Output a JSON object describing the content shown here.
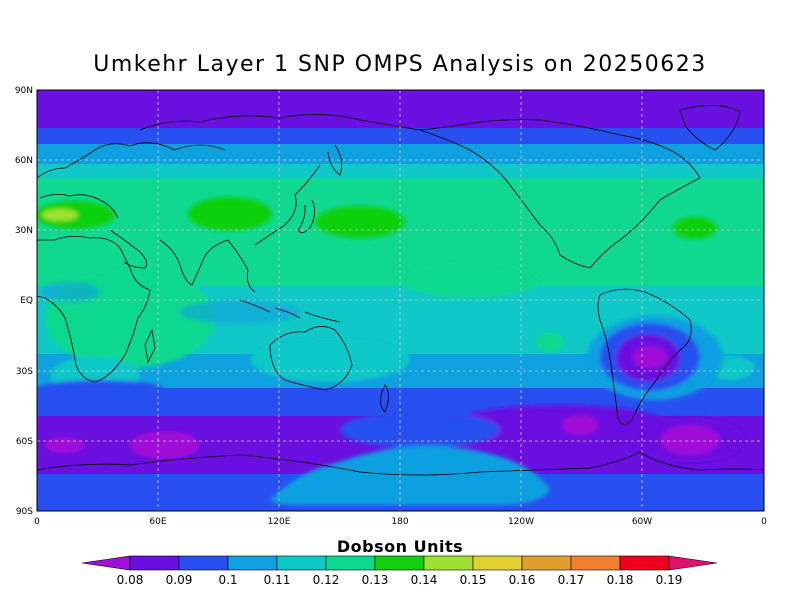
{
  "title": "Umkehr Layer 1 SNP OMPS Analysis on 20250623",
  "axes": {
    "lat_ticks": [
      "90N",
      "60N",
      "30N",
      "EQ",
      "30S",
      "60S",
      "90S"
    ],
    "lon_ticks": [
      "0",
      "60E",
      "120E",
      "180",
      "120W",
      "60W",
      "0"
    ]
  },
  "colorbar": {
    "title": "Dobson Units",
    "labels": [
      "0.08",
      "0.09",
      "0.1",
      "0.11",
      "0.12",
      "0.13",
      "0.14",
      "0.15",
      "0.16",
      "0.17",
      "0.18",
      "0.19"
    ],
    "colors": [
      "#a010d8",
      "#6a10e0",
      "#2850f0",
      "#0fa0e0",
      "#10c8c8",
      "#10d890",
      "#10d010",
      "#a0e030",
      "#e0d030",
      "#e0a030",
      "#f08030",
      "#f00020",
      "#e01070"
    ],
    "under_color": "#a010d8",
    "over_color": "#e01070"
  },
  "map": {
    "projection": "cylindrical equidistant",
    "lon_range": [
      0,
      360
    ],
    "lat_range": [
      -90,
      90
    ],
    "grid": "dashed",
    "unit": "Dobson Units"
  }
}
